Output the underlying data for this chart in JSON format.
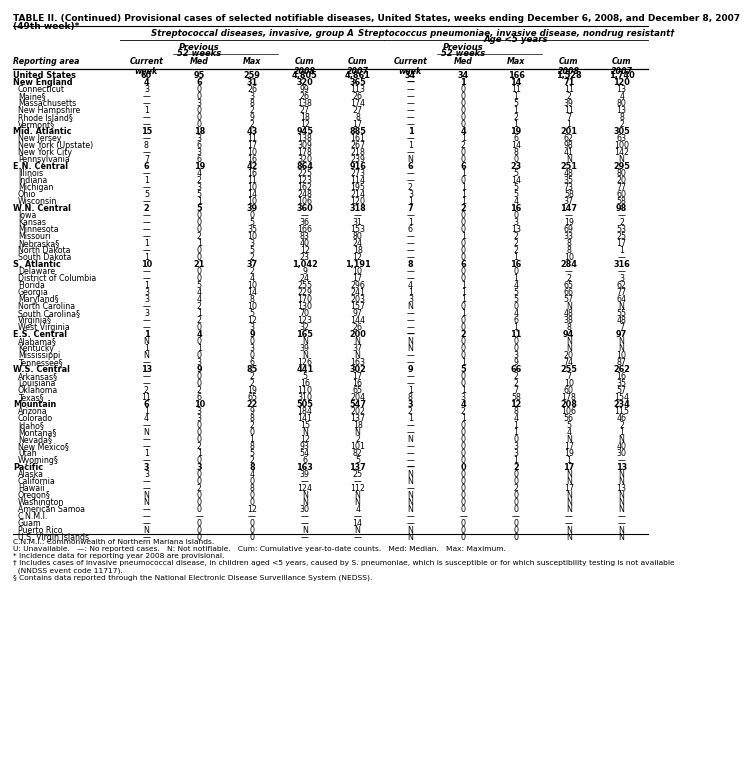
{
  "title_line1": "TABLE II. (Continued) Provisional cases of selected notifiable diseases, United States, weeks ending December 6, 2008, and December 8, 2007",
  "title_line2": "(49th week)*",
  "col1_header": "Streptococcal diseases, invasive, group A",
  "col2_header_line1": "Streptococcus pneumoniae, invasive disease, nondrug resistant†",
  "col2_header_line2": "Age <5 years",
  "reporting_area_label": "Reporting area",
  "rows": [
    [
      "United States",
      "60",
      "95",
      "259",
      "4,805",
      "4,861",
      "34",
      "34",
      "166",
      "1,528",
      "1,740"
    ],
    [
      "New England",
      "4",
      "6",
      "31",
      "320",
      "365",
      "—",
      "1",
      "14",
      "71",
      "120"
    ],
    [
      "Connecticut",
      "3",
      "0",
      "26",
      "99",
      "113",
      "—",
      "0",
      "11",
      "11",
      "13"
    ],
    [
      "Maine§",
      "—",
      "0",
      "3",
      "26",
      "26",
      "—",
      "0",
      "1",
      "2",
      "4"
    ],
    [
      "Massachusetts",
      "—",
      "3",
      "8",
      "138",
      "174",
      "—",
      "0",
      "5",
      "39",
      "80"
    ],
    [
      "New Hampshire",
      "1",
      "0",
      "2",
      "27",
      "27",
      "—",
      "0",
      "1",
      "11",
      "13"
    ],
    [
      "Rhode Island§",
      "—",
      "0",
      "9",
      "18",
      "8",
      "—",
      "0",
      "2",
      "7",
      "8"
    ],
    [
      "Vermont§",
      "—",
      "0",
      "2",
      "12",
      "17",
      "—",
      "0",
      "1",
      "1",
      "2"
    ],
    [
      "Mid. Atlantic",
      "15",
      "18",
      "43",
      "945",
      "885",
      "1",
      "4",
      "19",
      "201",
      "305"
    ],
    [
      "New Jersey",
      "—",
      "3",
      "11",
      "138",
      "161",
      "—",
      "1",
      "6",
      "62",
      "63"
    ],
    [
      "New York (Upstate)",
      "8",
      "6",
      "17",
      "309",
      "267",
      "1",
      "2",
      "14",
      "98",
      "100"
    ],
    [
      "New York City",
      "—",
      "3",
      "10",
      "178",
      "218",
      "—",
      "0",
      "8",
      "41",
      "142"
    ],
    [
      "Pennsylvania",
      "7",
      "6",
      "16",
      "320",
      "239",
      "N",
      "0",
      "0",
      "N",
      "N"
    ],
    [
      "E.N. Central",
      "6",
      "19",
      "42",
      "864",
      "916",
      "6",
      "6",
      "23",
      "251",
      "295"
    ],
    [
      "Illinois",
      "—",
      "4",
      "16",
      "225",
      "273",
      "—",
      "1",
      "5",
      "48",
      "80"
    ],
    [
      "Indiana",
      "1",
      "2",
      "11",
      "123",
      "114",
      "—",
      "0",
      "14",
      "35",
      "20"
    ],
    [
      "Michigan",
      "—",
      "3",
      "10",
      "162",
      "195",
      "2",
      "1",
      "5",
      "73",
      "77"
    ],
    [
      "Ohio",
      "5",
      "5",
      "14",
      "248",
      "214",
      "3",
      "1",
      "5",
      "58",
      "60"
    ],
    [
      "Wisconsin",
      "—",
      "1",
      "10",
      "106",
      "120",
      "1",
      "1",
      "4",
      "37",
      "58"
    ],
    [
      "W.N. Central",
      "2",
      "5",
      "39",
      "360",
      "318",
      "7",
      "2",
      "16",
      "147",
      "98"
    ],
    [
      "Iowa",
      "—",
      "0",
      "0",
      "—",
      "—",
      "—",
      "0",
      "0",
      "—",
      "—"
    ],
    [
      "Kansas",
      "—",
      "0",
      "5",
      "36",
      "31",
      "1",
      "0",
      "3",
      "19",
      "2"
    ],
    [
      "Minnesota",
      "—",
      "0",
      "35",
      "166",
      "153",
      "6",
      "0",
      "13",
      "69",
      "53"
    ],
    [
      "Missouri",
      "—",
      "2",
      "10",
      "83",
      "80",
      "—",
      "1",
      "2",
      "33",
      "25"
    ],
    [
      "Nebraska§",
      "1",
      "1",
      "3",
      "40",
      "24",
      "—",
      "0",
      "2",
      "8",
      "17"
    ],
    [
      "North Dakota",
      "—",
      "0",
      "5",
      "12",
      "18",
      "—",
      "0",
      "2",
      "8",
      "1"
    ],
    [
      "South Dakota",
      "1",
      "0",
      "2",
      "23",
      "12",
      "—",
      "0",
      "1",
      "10",
      "—"
    ],
    [
      "S. Atlantic",
      "10",
      "21",
      "37",
      "1,042",
      "1,191",
      "8",
      "6",
      "16",
      "284",
      "316"
    ],
    [
      "Delaware",
      "—",
      "0",
      "2",
      "9",
      "10",
      "—",
      "0",
      "0",
      "—",
      "—"
    ],
    [
      "District of Columbia",
      "—",
      "0",
      "4",
      "24",
      "17",
      "—",
      "0",
      "1",
      "2",
      "3"
    ],
    [
      "Florida",
      "1",
      "5",
      "10",
      "255",
      "296",
      "4",
      "1",
      "4",
      "65",
      "62"
    ],
    [
      "Georgia",
      "3",
      "4",
      "14",
      "229",
      "241",
      "1",
      "1",
      "5",
      "66",
      "77"
    ],
    [
      "Maryland§",
      "3",
      "4",
      "8",
      "170",
      "203",
      "3",
      "1",
      "5",
      "57",
      "64"
    ],
    [
      "North Carolina",
      "—",
      "2",
      "10",
      "130",
      "157",
      "N",
      "0",
      "0",
      "N",
      "N"
    ],
    [
      "South Carolina§",
      "3",
      "1",
      "5",
      "70",
      "97",
      "—",
      "1",
      "4",
      "48",
      "55"
    ],
    [
      "Virginia§",
      "—",
      "2",
      "12",
      "123",
      "144",
      "—",
      "0",
      "6",
      "38",
      "48"
    ],
    [
      "West Virginia",
      "—",
      "0",
      "3",
      "32",
      "26",
      "—",
      "0",
      "1",
      "8",
      "7"
    ],
    [
      "E.S. Central",
      "1",
      "4",
      "9",
      "165",
      "200",
      "—",
      "2",
      "11",
      "94",
      "97"
    ],
    [
      "Alabama§",
      "N",
      "0",
      "0",
      "N",
      "N",
      "N",
      "0",
      "0",
      "N",
      "N"
    ],
    [
      "Kentucky",
      "1",
      "1",
      "3",
      "39",
      "37",
      "N",
      "0",
      "0",
      "N",
      "N"
    ],
    [
      "Mississippi",
      "N",
      "0",
      "0",
      "N",
      "N",
      "—",
      "0",
      "3",
      "20",
      "10"
    ],
    [
      "Tennessee§",
      "—",
      "3",
      "6",
      "126",
      "163",
      "—",
      "1",
      "9",
      "74",
      "87"
    ],
    [
      "W.S. Central",
      "13",
      "9",
      "85",
      "441",
      "302",
      "9",
      "5",
      "66",
      "255",
      "262"
    ],
    [
      "Arkansas§",
      "—",
      "0",
      "2",
      "5",
      "17",
      "—",
      "0",
      "2",
      "7",
      "16"
    ],
    [
      "Louisiana",
      "—",
      "0",
      "2",
      "16",
      "16",
      "—",
      "0",
      "2",
      "10",
      "35"
    ],
    [
      "Oklahoma",
      "2",
      "2",
      "19",
      "110",
      "65",
      "1",
      "1",
      "7",
      "60",
      "57"
    ],
    [
      "Texas§",
      "11",
      "6",
      "65",
      "310",
      "204",
      "8",
      "3",
      "58",
      "178",
      "154"
    ],
    [
      "Mountain",
      "6",
      "10",
      "22",
      "505",
      "547",
      "3",
      "4",
      "12",
      "208",
      "234"
    ],
    [
      "Arizona",
      "1",
      "3",
      "9",
      "184",
      "202",
      "2",
      "2",
      "8",
      "106",
      "115"
    ],
    [
      "Colorado",
      "4",
      "3",
      "8",
      "141",
      "137",
      "1",
      "1",
      "4",
      "56",
      "46"
    ],
    [
      "Idaho§",
      "—",
      "0",
      "2",
      "15",
      "18",
      "—",
      "0",
      "1",
      "5",
      "2"
    ],
    [
      "Montana§",
      "N",
      "0",
      "0",
      "N",
      "N",
      "—",
      "0",
      "1",
      "4",
      "1"
    ],
    [
      "Nevada§",
      "—",
      "0",
      "1",
      "12",
      "2",
      "N",
      "0",
      "0",
      "N",
      "N"
    ],
    [
      "New Mexico§",
      "—",
      "2",
      "8",
      "93",
      "101",
      "—",
      "0",
      "3",
      "17",
      "40"
    ],
    [
      "Utah",
      "1",
      "1",
      "5",
      "54",
      "82",
      "—",
      "0",
      "3",
      "19",
      "30"
    ],
    [
      "Wyoming§",
      "—",
      "0",
      "2",
      "6",
      "5",
      "—",
      "0",
      "1",
      "1",
      "—"
    ],
    [
      "Pacific",
      "3",
      "3",
      "8",
      "163",
      "137",
      "—",
      "0",
      "2",
      "17",
      "13"
    ],
    [
      "Alaska",
      "3",
      "0",
      "4",
      "39",
      "25",
      "N",
      "0",
      "0",
      "N",
      "N"
    ],
    [
      "California",
      "—",
      "0",
      "0",
      "—",
      "—",
      "N",
      "0",
      "0",
      "N",
      "N"
    ],
    [
      "Hawaii",
      "—",
      "2",
      "8",
      "124",
      "112",
      "—",
      "0",
      "2",
      "17",
      "13"
    ],
    [
      "Oregon§",
      "N",
      "0",
      "0",
      "N",
      "N",
      "N",
      "0",
      "0",
      "N",
      "N"
    ],
    [
      "Washington",
      "N",
      "0",
      "0",
      "N",
      "N",
      "N",
      "0",
      "0",
      "N",
      "N"
    ],
    [
      "American Samoa",
      "—",
      "0",
      "12",
      "30",
      "4",
      "N",
      "0",
      "0",
      "N",
      "N"
    ],
    [
      "C.N.M.I.",
      "—",
      "—",
      "—",
      "—",
      "—",
      "—",
      "—",
      "—",
      "—",
      "—"
    ],
    [
      "Guam",
      "—",
      "0",
      "0",
      "—",
      "14",
      "—",
      "0",
      "0",
      "—",
      "—"
    ],
    [
      "Puerto Rico",
      "N",
      "0",
      "0",
      "N",
      "N",
      "N",
      "0",
      "0",
      "N",
      "N"
    ],
    [
      "U.S. Virgin Islands",
      "—",
      "0",
      "0",
      "—",
      "—",
      "N",
      "0",
      "0",
      "N",
      "N"
    ]
  ],
  "section_names": [
    "United States",
    "New England",
    "Mid. Atlantic",
    "E.N. Central",
    "W.N. Central",
    "S. Atlantic",
    "E.S. Central",
    "W.S. Central",
    "Mountain",
    "Pacific"
  ],
  "footnotes": [
    "C.N.M.I.: Commonwealth of Northern Mariana Islands.",
    "U: Unavailable.   —: No reported cases.   N: Not notifiable.   Cum: Cumulative year-to-date counts.   Med: Median.   Max: Maximum.",
    "* Incidence data for reporting year 2008 are provisional.",
    "† Includes cases of invasive pneumococcal disease, in children aged <5 years, caused by S. pneumoniae, which is susceptible or for which susceptibility testing is not available",
    "  (NNDSS event code 11717).",
    "§ Contains data reported through the National Electronic Disease Surveillance System (NEDSS)."
  ]
}
